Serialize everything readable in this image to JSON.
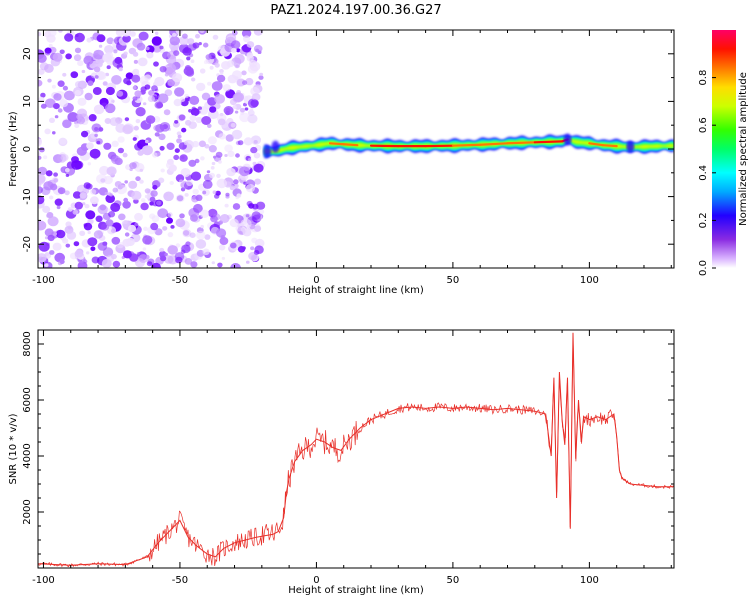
{
  "title": "PAZ1.2024.197.00.36.G27",
  "chart_data": [
    {
      "type": "heatmap",
      "xlabel": "Height of straight line (km)",
      "ylabel": "Frequency (Hz)",
      "xlim": [
        -102,
        131
      ],
      "ylim": [
        -25,
        25
      ],
      "xticks": [
        -100,
        -50,
        0,
        50,
        100
      ],
      "yticks": [
        -20,
        -10,
        0,
        10,
        20
      ],
      "noise_region": [
        -102,
        -20
      ],
      "ridge": {
        "x": [
          -19,
          -15,
          -10,
          -5,
          0,
          5,
          10,
          15,
          20,
          30,
          40,
          50,
          60,
          70,
          80,
          90,
          92,
          95,
          100,
          105,
          110,
          115,
          120,
          125,
          131
        ],
        "freq": [
          -0.5,
          -0.5,
          0.2,
          0.5,
          0.8,
          1.2,
          1.0,
          0.8,
          0.7,
          0.6,
          0.6,
          0.7,
          0.9,
          1.2,
          1.4,
          1.6,
          2.0,
          1.5,
          1.2,
          0.8,
          0.6,
          0.4,
          0.5,
          0.6,
          0.7
        ],
        "amplitude": [
          0.4,
          0.5,
          0.6,
          0.6,
          0.8,
          0.9,
          0.85,
          0.8,
          0.95,
          1.0,
          0.95,
          0.9,
          0.85,
          0.9,
          1.0,
          0.95,
          0.8,
          0.7,
          0.9,
          0.85,
          0.8,
          0.7,
          0.75,
          0.8,
          0.8
        ]
      },
      "colorbar": {
        "label": "Normalized spectral amplitude",
        "range": [
          0,
          1
        ],
        "ticks": [
          "0.0",
          "0.2",
          "0.4",
          "0.6",
          "0.8"
        ]
      }
    },
    {
      "type": "line",
      "xlabel": "Height of straight line (km)",
      "ylabel": "SNR (10 * v/v)",
      "xlim": [
        -102,
        131
      ],
      "ylim": [
        0,
        8500
      ],
      "xticks": [
        -100,
        -50,
        0,
        50,
        100
      ],
      "yticks": [
        2000,
        4000,
        6000,
        8000
      ],
      "color": "#e8302a",
      "x": [
        -102,
        -90,
        -80,
        -70,
        -62,
        -58,
        -55,
        -52,
        -50,
        -47,
        -44,
        -40,
        -37,
        -34,
        -30,
        -26,
        -22,
        -19,
        -16,
        -14,
        -12,
        -11,
        -10,
        -8,
        -5,
        -2,
        0,
        3,
        6,
        9,
        12,
        16,
        20,
        25,
        30,
        35,
        40,
        45,
        50,
        55,
        60,
        65,
        70,
        75,
        80,
        84,
        86,
        87,
        88,
        89,
        90,
        91,
        92,
        93,
        94,
        95,
        96,
        97,
        98,
        100,
        103,
        106,
        109,
        110,
        111,
        112,
        115,
        120,
        125,
        131
      ],
      "y": [
        150,
        100,
        150,
        120,
        400,
        900,
        1200,
        1500,
        1700,
        1100,
        800,
        500,
        400,
        700,
        900,
        1000,
        1100,
        1150,
        1200,
        1300,
        1800,
        2700,
        3200,
        3800,
        4200,
        4400,
        4600,
        4500,
        4300,
        4200,
        4600,
        5000,
        5300,
        5500,
        5700,
        5750,
        5700,
        5750,
        5700,
        5750,
        5700,
        5650,
        5700,
        5650,
        5600,
        5500,
        4000,
        6800,
        2500,
        7000,
        5300,
        4400,
        6800,
        1400,
        8400,
        3900,
        6000,
        4500,
        5400,
        5300,
        5400,
        5300,
        5500,
        4700,
        3500,
        3200,
        3000,
        2950,
        2900,
        2900
      ]
    }
  ]
}
